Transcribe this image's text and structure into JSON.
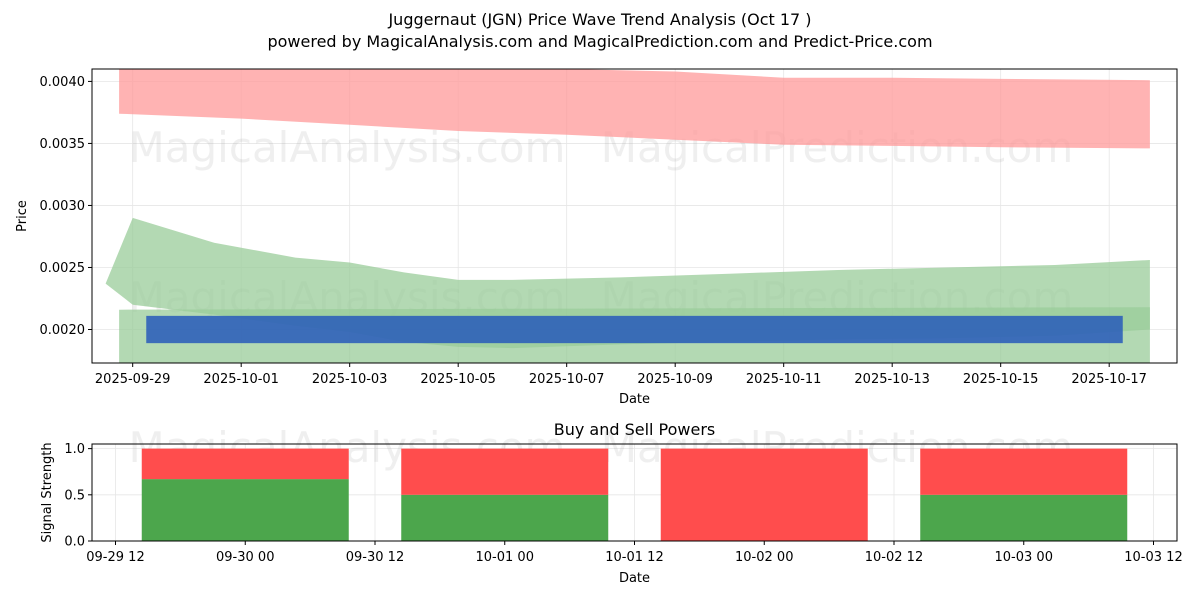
{
  "title": "Juggernaut (JGN) Price Wave Trend Analysis (Oct 17 )",
  "subtitle": "powered by MagicalAnalysis.com and MagicalPrediction.com and Predict-Price.com",
  "watermarks": [
    "MagicalAnalysis.com",
    "MagicalPrediction.com"
  ],
  "colors": {
    "upper_band": "#ff9999",
    "lower_band": "#99cc99",
    "signal_bar": "#2255bb",
    "signal_overlap": "#22776a",
    "buy": "#4ca64c",
    "sell": "#ff4d4d"
  },
  "chart_data": [
    {
      "type": "area",
      "xlabel": "Date",
      "ylabel": "Price",
      "ylim": [
        0.00173,
        0.0041
      ],
      "xlim": [
        "2025-09-28T06:00",
        "2025-10-18T06:00"
      ],
      "x_ticks": [
        "2025-09-29",
        "2025-10-01",
        "2025-10-03",
        "2025-10-05",
        "2025-10-07",
        "2025-10-09",
        "2025-10-11",
        "2025-10-13",
        "2025-10-15",
        "2025-10-17"
      ],
      "y_ticks": [
        "0.0020",
        "0.0025",
        "0.0030",
        "0.0035",
        "0.0040"
      ],
      "grid": true,
      "bands": [
        {
          "color": "upper_band",
          "x": [
            "2025-09-28T18:00",
            "2025-10-01",
            "2025-10-03",
            "2025-10-05",
            "2025-10-07",
            "2025-10-09",
            "2025-10-11",
            "2025-10-13",
            "2025-10-15",
            "2025-10-17T18:00"
          ],
          "upper": [
            0.0041,
            0.0041,
            0.0041,
            0.0041,
            0.0041,
            0.00408,
            0.00403,
            0.00403,
            0.00402,
            0.00401
          ],
          "lower": [
            0.00374,
            0.0037,
            0.00365,
            0.0036,
            0.00357,
            0.00353,
            0.00349,
            0.00348,
            0.00347,
            0.00346
          ]
        },
        {
          "color": "lower_band",
          "x": [
            "2025-09-28T12:00",
            "2025-09-29",
            "2025-09-30T12:00",
            "2025-10-02",
            "2025-10-03",
            "2025-10-04",
            "2025-10-05",
            "2025-10-06",
            "2025-10-08",
            "2025-10-10",
            "2025-10-12",
            "2025-10-14",
            "2025-10-16",
            "2025-10-17T18:00"
          ],
          "upper": [
            0.00237,
            0.0029,
            0.0027,
            0.00258,
            0.00254,
            0.00246,
            0.0024,
            0.0024,
            0.00242,
            0.00245,
            0.00248,
            0.0025,
            0.00252,
            0.00256
          ],
          "lower": [
            0.00237,
            0.0022,
            0.00212,
            0.00203,
            0.00198,
            0.0019,
            0.00186,
            0.00185,
            0.00188,
            0.0019,
            0.00192,
            0.00193,
            0.00195,
            0.002
          ]
        },
        {
          "color": "lower_band",
          "x": [
            "2025-09-28T18:00",
            "2025-10-17T18:00"
          ],
          "upper": [
            0.00216,
            0.00218
          ],
          "lower": [
            0.00173,
            0.00173
          ]
        }
      ],
      "signal_bar": {
        "color": "signal_bar",
        "x": [
          "2025-09-29T06:00",
          "2025-10-17T06:00"
        ],
        "top": 0.00211,
        "bottom": 0.00189
      }
    },
    {
      "type": "bar",
      "title": "Buy and Sell Powers",
      "xlabel": "Date",
      "ylabel": "Signal Strength",
      "ylim": [
        0,
        1.05
      ],
      "y_ticks": [
        "0.0",
        "0.5",
        "1.0"
      ],
      "x_ticks": [
        "09-29 12",
        "09-30 00",
        "09-30 12",
        "10-01 00",
        "10-01 12",
        "10-02 00",
        "10-02 12",
        "10-03 00",
        "10-03 12"
      ],
      "categories": [
        "09-30 00",
        "10-01 00",
        "10-02 00",
        "10-03 00"
      ],
      "series": [
        {
          "color": "buy",
          "values": [
            0.67,
            0.5,
            0.0,
            0.5
          ]
        },
        {
          "color": "sell",
          "values": [
            0.33,
            0.5,
            1.0,
            0.5
          ]
        }
      ],
      "grid": true
    }
  ]
}
